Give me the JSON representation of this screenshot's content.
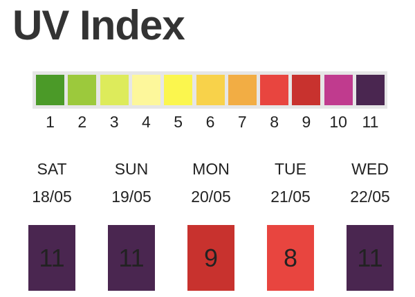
{
  "header": {
    "title": "UV Index"
  },
  "scale": [
    {
      "label": 1,
      "color": "#4b9a28"
    },
    {
      "label": 2,
      "color": "#9cc93c"
    },
    {
      "label": 3,
      "color": "#ddeb5b"
    },
    {
      "label": 4,
      "color": "#fdf79b"
    },
    {
      "label": 5,
      "color": "#fbf64e"
    },
    {
      "label": 6,
      "color": "#f8d24a"
    },
    {
      "label": 7,
      "color": "#f2ad44"
    },
    {
      "label": 8,
      "color": "#e8453f"
    },
    {
      "label": 9,
      "color": "#c8322e"
    },
    {
      "label": 10,
      "color": "#c03b8e"
    },
    {
      "label": 11,
      "color": "#4a2650"
    }
  ],
  "days": [
    {
      "day": "SAT",
      "date": "18/05",
      "value": 11,
      "color": "#4a2650"
    },
    {
      "day": "SUN",
      "date": "19/05",
      "value": 11,
      "color": "#4a2650"
    },
    {
      "day": "MON",
      "date": "20/05",
      "value": 9,
      "color": "#c8322e"
    },
    {
      "day": "TUE",
      "date": "21/05",
      "value": 8,
      "color": "#e8453f"
    },
    {
      "day": "WED",
      "date": "22/05",
      "value": 11,
      "color": "#4a2650"
    }
  ]
}
